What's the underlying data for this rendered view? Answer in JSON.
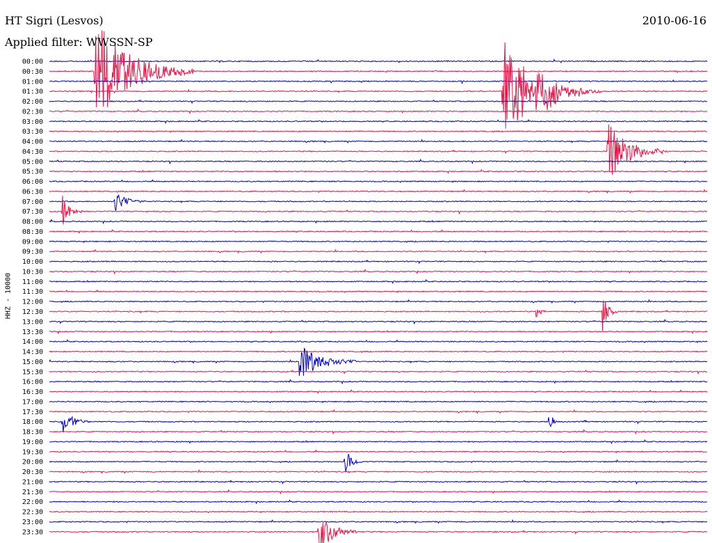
{
  "header": {
    "title": "HT Sigri (Lesvos)",
    "date": "2010-06-16",
    "filter": "Applied filter: WWSSN-SP"
  },
  "chart_data": {
    "type": "line",
    "ylabel": "HHZ - 10000",
    "colors": [
      "#0000cc",
      "#ee1144"
    ],
    "categories": [
      "00:00",
      "00:30",
      "01:00",
      "01:30",
      "02:00",
      "02:30",
      "03:00",
      "03:30",
      "04:00",
      "04:30",
      "05:00",
      "05:30",
      "06:00",
      "06:30",
      "07:00",
      "07:30",
      "08:00",
      "08:30",
      "09:00",
      "09:30",
      "10:00",
      "10:30",
      "11:00",
      "11:30",
      "12:00",
      "12:30",
      "13:00",
      "13:30",
      "14:00",
      "14:30",
      "15:00",
      "15:30",
      "16:00",
      "16:30",
      "17:00",
      "17:30",
      "18:00",
      "18:30",
      "19:00",
      "19:30",
      "20:00",
      "20:30",
      "21:00",
      "21:30",
      "22:00",
      "22:30",
      "23:00",
      "23:30"
    ],
    "events": [
      {
        "row": 1,
        "t": 0.07,
        "amp": 1.0,
        "dur": 0.05
      },
      {
        "row": 3,
        "t": 0.69,
        "amp": 1.0,
        "dur": 0.04
      },
      {
        "row": 3,
        "t": 0.72,
        "amp": 0.5,
        "dur": 0.04
      },
      {
        "row": 9,
        "t": 0.85,
        "amp": 0.55,
        "dur": 0.03
      },
      {
        "row": 14,
        "t": 0.1,
        "amp": 0.2,
        "dur": 0.015
      },
      {
        "row": 15,
        "t": 0.02,
        "amp": 0.3,
        "dur": 0.01
      },
      {
        "row": 25,
        "t": 0.74,
        "amp": 0.15,
        "dur": 0.005
      },
      {
        "row": 25,
        "t": 0.84,
        "amp": 0.5,
        "dur": 0.008
      },
      {
        "row": 30,
        "t": 0.38,
        "amp": 0.35,
        "dur": 0.03
      },
      {
        "row": 36,
        "t": 0.02,
        "amp": 0.25,
        "dur": 0.015
      },
      {
        "row": 36,
        "t": 0.76,
        "amp": 0.35,
        "dur": 0.004
      },
      {
        "row": 40,
        "t": 0.45,
        "amp": 0.25,
        "dur": 0.01
      },
      {
        "row": 47,
        "t": 0.41,
        "amp": 0.4,
        "dur": 0.02
      }
    ]
  }
}
